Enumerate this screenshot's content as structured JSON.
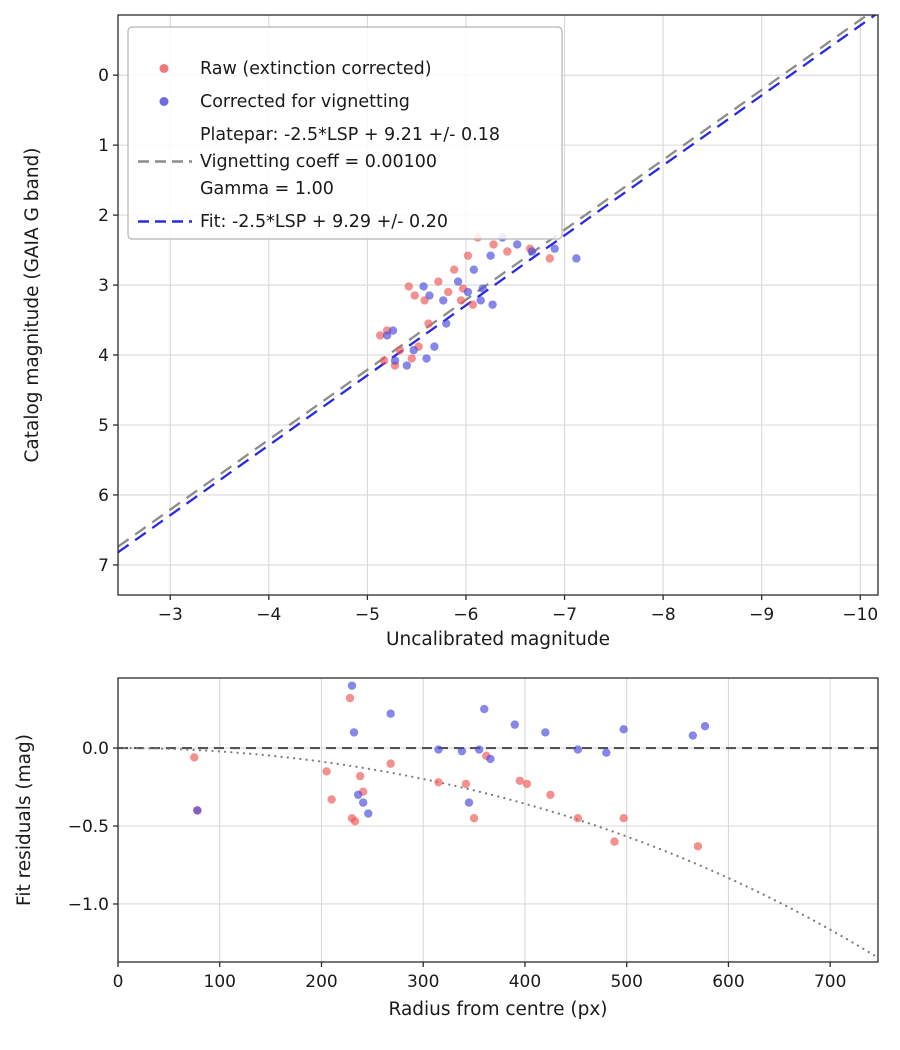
{
  "figure": {
    "background": "#ffffff"
  },
  "colors": {
    "raw": "#f05454",
    "corrected": "#4646dd",
    "platepar_line": "#8c8c8c",
    "fit_line": "#2a2ae0",
    "grid": "#d9d9d9",
    "zero_line": "#555555",
    "vignette_curve": "#7d7d7d",
    "frame": "#2b2b2b",
    "text": "#1a1a1a"
  },
  "chart_data": [
    {
      "id": "magnitude",
      "type": "scatter",
      "title": "",
      "xlabel": "Uncalibrated magnitude",
      "ylabel": "Catalog magnitude (GAIA G band)",
      "xlim": [
        -2.47,
        -10.18
      ],
      "ylim": [
        7.43,
        -0.86
      ],
      "grid": true,
      "xticks": [
        {
          "v": -3,
          "label": "−3"
        },
        {
          "v": -4,
          "label": "−4"
        },
        {
          "v": -5,
          "label": "−5"
        },
        {
          "v": -6,
          "label": "−6"
        },
        {
          "v": -7,
          "label": "−7"
        },
        {
          "v": -8,
          "label": "−8"
        },
        {
          "v": -9,
          "label": "−9"
        },
        {
          "v": -10,
          "label": "−10"
        }
      ],
      "yticks": [
        {
          "v": 0,
          "label": "0"
        },
        {
          "v": 1,
          "label": "1"
        },
        {
          "v": 2,
          "label": "2"
        },
        {
          "v": 3,
          "label": "3"
        },
        {
          "v": 4,
          "label": "4"
        },
        {
          "v": 5,
          "label": "5"
        },
        {
          "v": 6,
          "label": "6"
        },
        {
          "v": 7,
          "label": "7"
        }
      ],
      "series": [
        {
          "id": "raw-extinction-corrected-points",
          "name": "Raw (extinction corrected)",
          "color": "#f05454",
          "points": [
            [
              -5.2,
              3.65
            ],
            [
              -5.13,
              3.72
            ],
            [
              -5.17,
              4.08
            ],
            [
              -5.28,
              4.15
            ],
            [
              -5.33,
              3.93
            ],
            [
              -5.45,
              4.05
            ],
            [
              -5.52,
              3.88
            ],
            [
              -5.42,
              3.02
            ],
            [
              -5.48,
              3.15
            ],
            [
              -5.58,
              3.22
            ],
            [
              -5.72,
              2.95
            ],
            [
              -5.82,
              3.1
            ],
            [
              -5.95,
              3.22
            ],
            [
              -5.88,
              2.78
            ],
            [
              -6.02,
              2.58
            ],
            [
              -6.12,
              2.32
            ],
            [
              -6.28,
              2.42
            ],
            [
              -6.07,
              3.28
            ],
            [
              -6.42,
              2.52
            ],
            [
              -6.85,
              2.62
            ],
            [
              -6.65,
              2.48
            ],
            [
              -5.62,
              3.55
            ],
            [
              -5.97,
              3.05
            ]
          ]
        },
        {
          "id": "corrected-for-vignetting-points",
          "name": "Corrected for vignetting",
          "color": "#4646dd",
          "points": [
            [
              -5.26,
              3.65
            ],
            [
              -5.2,
              3.72
            ],
            [
              -5.28,
              4.08
            ],
            [
              -5.4,
              4.15
            ],
            [
              -5.47,
              3.93
            ],
            [
              -5.6,
              4.05
            ],
            [
              -5.68,
              3.88
            ],
            [
              -5.57,
              3.02
            ],
            [
              -5.63,
              3.15
            ],
            [
              -5.77,
              3.22
            ],
            [
              -5.92,
              2.95
            ],
            [
              -6.02,
              3.1
            ],
            [
              -6.15,
              3.22
            ],
            [
              -6.08,
              2.78
            ],
            [
              -6.25,
              2.58
            ],
            [
              -6.37,
              2.32
            ],
            [
              -6.52,
              2.42
            ],
            [
              -6.27,
              3.28
            ],
            [
              -6.67,
              2.52
            ],
            [
              -7.12,
              2.62
            ],
            [
              -6.9,
              2.48
            ],
            [
              -5.8,
              3.55
            ],
            [
              -6.17,
              3.05
            ]
          ]
        }
      ],
      "lines": [
        {
          "name": "platepar-fit-line",
          "slope": 1,
          "intercept": 9.21,
          "color": "#8c8c8c",
          "dash": "13 8",
          "width": 2.3
        },
        {
          "name": "vignetting-fit-line",
          "slope": 1,
          "intercept": 9.29,
          "color": "#2a2ae0",
          "dash": "13 8",
          "width": 2.3
        }
      ],
      "legend": {
        "entries": [
          {
            "marker": "dot",
            "color": "#f05454",
            "lines": [
              "Raw (extinction corrected)"
            ]
          },
          {
            "marker": "dot",
            "color": "#4646dd",
            "lines": [
              "Corrected for vignetting"
            ]
          },
          {
            "marker": "dash",
            "color": "#8c8c8c",
            "lines": [
              "Platepar: -2.5*LSP + 9.21 +/- 0.18",
              "Vignetting coeff = 0.00100",
              "Gamma = 1.00"
            ]
          },
          {
            "marker": "dash",
            "color": "#2a2ae0",
            "lines": [
              "Fit: -2.5*LSP + 9.29 +/- 0.20"
            ]
          }
        ]
      }
    },
    {
      "id": "residuals",
      "type": "scatter",
      "title": "",
      "xlabel": "Radius from centre (px)",
      "ylabel": "Fit residuals (mag)",
      "xlim": [
        0,
        747
      ],
      "ylim": [
        -1.372,
        0.449
      ],
      "grid": true,
      "xticks": [
        {
          "v": 0,
          "label": "0"
        },
        {
          "v": 100,
          "label": "100"
        },
        {
          "v": 200,
          "label": "200"
        },
        {
          "v": 300,
          "label": "300"
        },
        {
          "v": 400,
          "label": "400"
        },
        {
          "v": 500,
          "label": "500"
        },
        {
          "v": 600,
          "label": "600"
        },
        {
          "v": 700,
          "label": "700"
        }
      ],
      "yticks": [
        {
          "v": 0.0,
          "label": "0.0"
        },
        {
          "v": -0.5,
          "label": "−0.5"
        },
        {
          "v": -1.0,
          "label": "−1.0"
        }
      ],
      "series": [
        {
          "id": "raw-residual-points",
          "name": "Raw residuals",
          "color": "#f05454",
          "points": [
            [
              75,
              -0.06
            ],
            [
              78,
              -0.4
            ],
            [
              205,
              -0.15
            ],
            [
              210,
              -0.33
            ],
            [
              228,
              0.32
            ],
            [
              230,
              -0.45
            ],
            [
              233,
              -0.47
            ],
            [
              238,
              -0.18
            ],
            [
              241,
              -0.28
            ],
            [
              268,
              -0.1
            ],
            [
              315,
              -0.22
            ],
            [
              342,
              -0.23
            ],
            [
              350,
              -0.45
            ],
            [
              362,
              -0.05
            ],
            [
              395,
              -0.21
            ],
            [
              402,
              -0.23
            ],
            [
              425,
              -0.3
            ],
            [
              452,
              -0.45
            ],
            [
              488,
              -0.6
            ],
            [
              497,
              -0.45
            ],
            [
              570,
              -0.63
            ]
          ]
        },
        {
          "id": "corrected-residual-points",
          "name": "Corrected residuals",
          "color": "#4646dd",
          "points": [
            [
              78,
              -0.4
            ],
            [
              230,
              0.4
            ],
            [
              232,
              0.1
            ],
            [
              236,
              -0.3
            ],
            [
              241,
              -0.35
            ],
            [
              246,
              -0.42
            ],
            [
              268,
              0.22
            ],
            [
              315,
              -0.01
            ],
            [
              338,
              -0.02
            ],
            [
              345,
              -0.35
            ],
            [
              355,
              -0.01
            ],
            [
              360,
              0.25
            ],
            [
              366,
              -0.07
            ],
            [
              390,
              0.15
            ],
            [
              420,
              0.1
            ],
            [
              452,
              -0.01
            ],
            [
              480,
              -0.03
            ],
            [
              497,
              0.12
            ],
            [
              565,
              0.08
            ],
            [
              577,
              0.14
            ]
          ]
        }
      ],
      "hline": {
        "y": 0,
        "color": "#555555",
        "dash": "10 6",
        "width": 2.1
      },
      "curve": {
        "name": "vignetting-model-curve",
        "coeff": 0.001,
        "gamma": 1.0,
        "color": "#7d7d7d",
        "width": 2.2
      }
    }
  ]
}
